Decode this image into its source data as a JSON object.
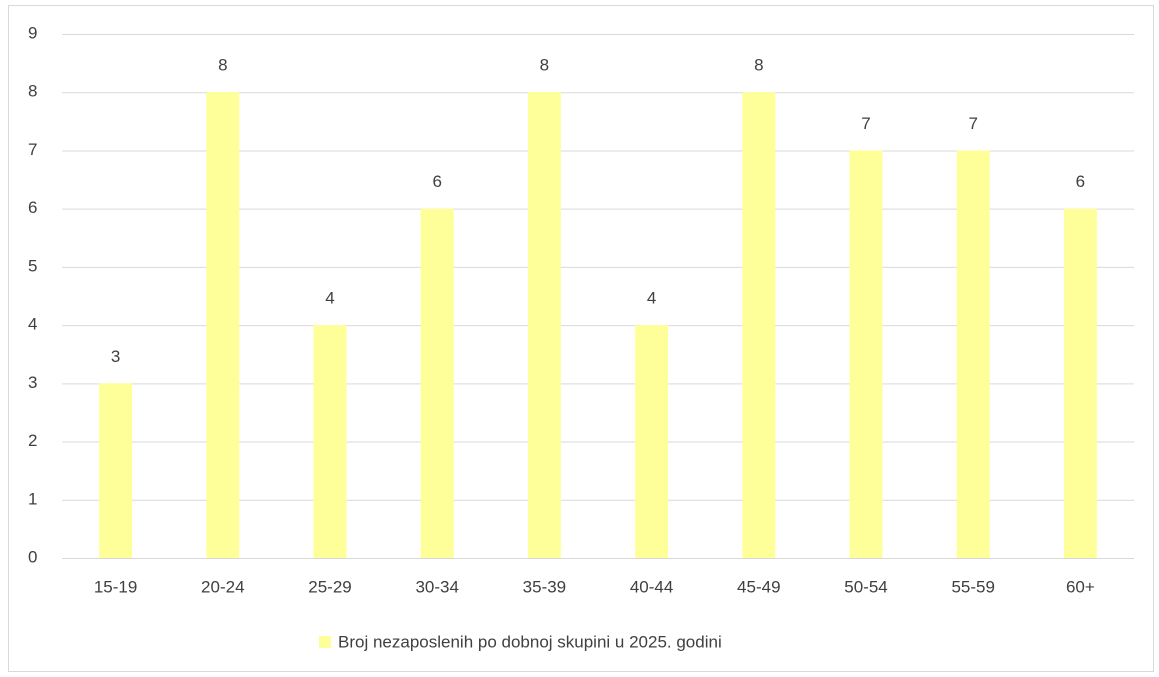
{
  "chart_data": {
    "type": "bar",
    "categories": [
      "15-19",
      "20-24",
      "25-29",
      "30-34",
      "35-39",
      "40-44",
      "45-49",
      "50-54",
      "55-59",
      "60+"
    ],
    "series": [
      {
        "name": "Broj nezaposlenih po dobnoj skupini u 2025. godini",
        "color": "#ffff99",
        "values": [
          3,
          8,
          4,
          6,
          8,
          4,
          8,
          7,
          7,
          6
        ]
      }
    ],
    "ylim": [
      0,
      9
    ],
    "yticks": [
      0,
      1,
      2,
      3,
      4,
      5,
      6,
      7,
      8,
      9
    ],
    "grid": true,
    "data_labels": true,
    "legend": "bottom"
  }
}
